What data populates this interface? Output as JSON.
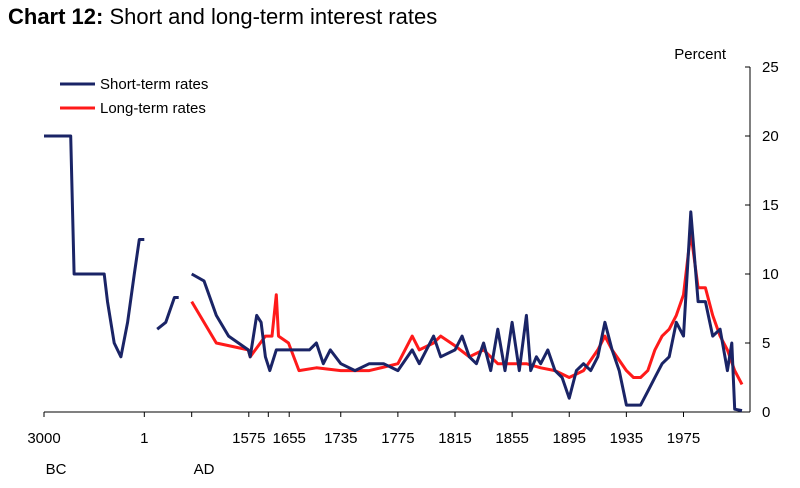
{
  "title": {
    "prefix": "Chart 12:",
    "text": "Short and long-term interest rates"
  },
  "chart_data": {
    "type": "line",
    "title": "Chart 12: Short and long-term interest rates",
    "ylabel": "Percent",
    "ylim": [
      0,
      25
    ],
    "y_ticks": [
      "0",
      "5",
      "10",
      "15",
      "20",
      "25"
    ],
    "x_tick_labels": [
      "3000",
      "1",
      "1575",
      "1655",
      "1735",
      "1775",
      "1815",
      "1855",
      "1895",
      "1935",
      "1975"
    ],
    "x_era_labels": [
      "BC",
      "AD"
    ],
    "legend_position": "top-left",
    "grid": false,
    "series": [
      {
        "name": "Short-term rates",
        "color": "#1a2466",
        "points": [
          [
            "3000 BC",
            20
          ],
          [
            "2200 BC",
            20
          ],
          [
            "2100 BC",
            10
          ],
          [
            "1200 BC",
            10
          ],
          [
            "1100 BC",
            8
          ],
          [
            "900 BC",
            5
          ],
          [
            "700 BC",
            4
          ],
          [
            "500 BC",
            6.5
          ],
          [
            "300 BC",
            10
          ],
          [
            "150 BC",
            12.5
          ],
          [
            "1 AD",
            12.5
          ],
          [
            "gap",
            null
          ],
          [
            "300 AD",
            6
          ],
          [
            "500 AD",
            6.5
          ],
          [
            "700 AD",
            8.3
          ],
          [
            "800 AD",
            8.3
          ],
          [
            "gap",
            null
          ],
          [
            "1100 AD",
            10
          ],
          [
            "1200 AD",
            9.5
          ],
          [
            "1300 AD",
            7
          ],
          [
            "1400 AD",
            5.5
          ],
          [
            "1560",
            4.5
          ],
          [
            "1575",
            4
          ],
          [
            "1590",
            7
          ],
          [
            "1600",
            6.5
          ],
          [
            "1610",
            4
          ],
          [
            "1620",
            3
          ],
          [
            "1635",
            4.5
          ],
          [
            "1655",
            4.5
          ],
          [
            "1675",
            4.5
          ],
          [
            "1690",
            4.5
          ],
          [
            "1700",
            5
          ],
          [
            "1710",
            3.5
          ],
          [
            "1720",
            4.5
          ],
          [
            "1735",
            3.5
          ],
          [
            "1745",
            3
          ],
          [
            "1755",
            3.5
          ],
          [
            "1765",
            3.5
          ],
          [
            "1775",
            3
          ],
          [
            "1785",
            4.5
          ],
          [
            "1790",
            3.5
          ],
          [
            "1800",
            5.5
          ],
          [
            "1805",
            4
          ],
          [
            "1815",
            4.5
          ],
          [
            "1820",
            5.5
          ],
          [
            "1825",
            4
          ],
          [
            "1830",
            3.5
          ],
          [
            "1835",
            5
          ],
          [
            "1840",
            3
          ],
          [
            "1845",
            6
          ],
          [
            "1850",
            3
          ],
          [
            "1855",
            6.5
          ],
          [
            "1860",
            3
          ],
          [
            "1865",
            7
          ],
          [
            "1868",
            3
          ],
          [
            "1872",
            4
          ],
          [
            "1875",
            3.5
          ],
          [
            "1880",
            4.5
          ],
          [
            "1885",
            3
          ],
          [
            "1890",
            2.5
          ],
          [
            "1895",
            1
          ],
          [
            "1900",
            3
          ],
          [
            "1905",
            3.5
          ],
          [
            "1910",
            3
          ],
          [
            "1915",
            4
          ],
          [
            "1920",
            6.5
          ],
          [
            "1925",
            4.5
          ],
          [
            "1930",
            3
          ],
          [
            "1935",
            0.5
          ],
          [
            "1940",
            0.5
          ],
          [
            "1945",
            0.5
          ],
          [
            "1950",
            1.5
          ],
          [
            "1955",
            2.5
          ],
          [
            "1960",
            3.5
          ],
          [
            "1965",
            4
          ],
          [
            "1970",
            6.5
          ],
          [
            "1975",
            5.5
          ],
          [
            "1980",
            14.5
          ],
          [
            "1985",
            8
          ],
          [
            "1990",
            8
          ],
          [
            "1995",
            5.5
          ],
          [
            "2000",
            6
          ],
          [
            "2005",
            3
          ],
          [
            "2008",
            5
          ],
          [
            "2010",
            0.2
          ],
          [
            "2015",
            0.1
          ]
        ]
      },
      {
        "name": "Long-term rates",
        "color": "#ff1a1a",
        "points": [
          [
            "1100 AD",
            8
          ],
          [
            "1300 AD",
            5
          ],
          [
            "1560",
            4.5
          ],
          [
            "1575",
            4
          ],
          [
            "1610",
            5.5
          ],
          [
            "1625",
            5.5
          ],
          [
            "1635",
            8.5
          ],
          [
            "1640",
            5.5
          ],
          [
            "1660",
            5
          ],
          [
            "1675",
            3
          ],
          [
            "1700",
            3.2
          ],
          [
            "1735",
            3
          ],
          [
            "1755",
            3
          ],
          [
            "1775",
            3.5
          ],
          [
            "1785",
            5.5
          ],
          [
            "1790",
            4.5
          ],
          [
            "1800",
            5
          ],
          [
            "1805",
            5.5
          ],
          [
            "1815",
            4.8
          ],
          [
            "1825",
            4
          ],
          [
            "1835",
            4.5
          ],
          [
            "1845",
            3.5
          ],
          [
            "1855",
            3.5
          ],
          [
            "1865",
            3.5
          ],
          [
            "1875",
            3.2
          ],
          [
            "1885",
            3
          ],
          [
            "1895",
            2.5
          ],
          [
            "1905",
            3
          ],
          [
            "1915",
            4.5
          ],
          [
            "1920",
            5.5
          ],
          [
            "1925",
            4.5
          ],
          [
            "1935",
            3
          ],
          [
            "1940",
            2.5
          ],
          [
            "1945",
            2.5
          ],
          [
            "1950",
            3
          ],
          [
            "1955",
            4.5
          ],
          [
            "1960",
            5.5
          ],
          [
            "1965",
            6
          ],
          [
            "1970",
            7
          ],
          [
            "1975",
            8.5
          ],
          [
            "1980",
            13
          ],
          [
            "1985",
            9
          ],
          [
            "1990",
            9
          ],
          [
            "1995",
            7
          ],
          [
            "2000",
            5.5
          ],
          [
            "2005",
            4.5
          ],
          [
            "2010",
            3
          ],
          [
            "2015",
            2
          ]
        ]
      }
    ]
  }
}
